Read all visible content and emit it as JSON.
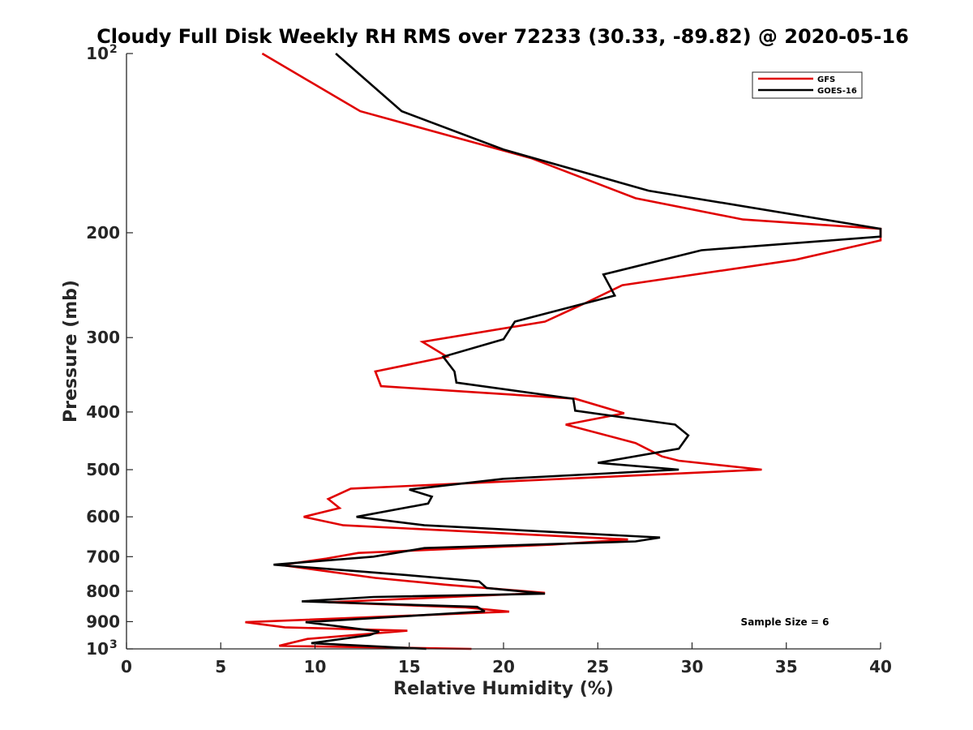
{
  "chart_data": {
    "type": "line",
    "title": "Cloudy Full Disk Weekly RH RMS over 72233 (30.33, -89.82) @ 2020-05-16",
    "xlabel": "Relative Humidity (%)",
    "ylabel": "Pressure (mb)",
    "xlim": [
      0,
      40
    ],
    "ylim": [
      100,
      1000
    ],
    "yscale": "log",
    "y_reversed": true,
    "x_ticks": [
      "0",
      "5",
      "10",
      "15",
      "20",
      "25",
      "30",
      "35",
      "40"
    ],
    "y_ticks": [
      {
        "value": 100,
        "base": "10",
        "exp": "2"
      },
      {
        "value": 200,
        "label": "200"
      },
      {
        "value": 300,
        "label": "300"
      },
      {
        "value": 400,
        "label": "400"
      },
      {
        "value": 500,
        "label": "500"
      },
      {
        "value": 600,
        "label": "600"
      },
      {
        "value": 700,
        "label": "700"
      },
      {
        "value": 800,
        "label": "800"
      },
      {
        "value": 900,
        "label": "900"
      },
      {
        "value": 1000,
        "base": "10",
        "exp": "3"
      }
    ],
    "legend_position": "top-right",
    "annotation": "Sample Size = 6",
    "series": [
      {
        "name": "GFS",
        "color": "#e00000",
        "points": [
          [
            7.2,
            100
          ],
          [
            12.4,
            125
          ],
          [
            21.5,
            150
          ],
          [
            27.0,
            175
          ],
          [
            32.7,
            190
          ],
          [
            40.0,
            197
          ],
          [
            40.0,
            206
          ],
          [
            35.5,
            222
          ],
          [
            26.3,
            245
          ],
          [
            24.4,
            262
          ],
          [
            22.2,
            282
          ],
          [
            15.7,
            305
          ],
          [
            17.0,
            323
          ],
          [
            13.2,
            342
          ],
          [
            13.5,
            362
          ],
          [
            23.8,
            380
          ],
          [
            26.4,
            402
          ],
          [
            23.3,
            420
          ],
          [
            27.0,
            451
          ],
          [
            28.4,
            475
          ],
          [
            29.3,
            483
          ],
          [
            33.7,
            500
          ],
          [
            11.9,
            538
          ],
          [
            10.7,
            560
          ],
          [
            11.3,
            580
          ],
          [
            9.4,
            600
          ],
          [
            11.5,
            620
          ],
          [
            26.6,
            655
          ],
          [
            22.6,
            668
          ],
          [
            12.3,
            690
          ],
          [
            10.6,
            705
          ],
          [
            8.2,
            723
          ],
          [
            13.2,
            760
          ],
          [
            16.9,
            780
          ],
          [
            22.2,
            805
          ],
          [
            10.7,
            835
          ],
          [
            18.0,
            852
          ],
          [
            20.3,
            866
          ],
          [
            6.3,
            902
          ],
          [
            8.4,
            920
          ],
          [
            14.9,
            932
          ],
          [
            9.6,
            962
          ],
          [
            8.1,
            988
          ],
          [
            18.3,
            1000
          ]
        ]
      },
      {
        "name": "GOES-16",
        "color": "#000000",
        "points": [
          [
            11.1,
            100
          ],
          [
            14.6,
            125
          ],
          [
            20.0,
            145
          ],
          [
            27.7,
            170
          ],
          [
            40.0,
            197
          ],
          [
            40.0,
            203
          ],
          [
            30.5,
            214
          ],
          [
            25.3,
            235
          ],
          [
            25.9,
            255
          ],
          [
            20.6,
            282
          ],
          [
            20.0,
            302
          ],
          [
            16.8,
            323
          ],
          [
            17.4,
            342
          ],
          [
            17.5,
            357
          ],
          [
            23.7,
            380
          ],
          [
            23.8,
            398
          ],
          [
            29.1,
            420
          ],
          [
            29.8,
            438
          ],
          [
            29.3,
            461
          ],
          [
            25.0,
            487
          ],
          [
            29.3,
            500
          ],
          [
            20.0,
            518
          ],
          [
            15.0,
            540
          ],
          [
            16.2,
            555
          ],
          [
            16.0,
            570
          ],
          [
            12.2,
            600
          ],
          [
            15.8,
            620
          ],
          [
            28.3,
            650
          ],
          [
            27.0,
            660
          ],
          [
            15.8,
            677
          ],
          [
            13.1,
            700
          ],
          [
            7.8,
            722
          ],
          [
            14.9,
            752
          ],
          [
            18.7,
            770
          ],
          [
            19.1,
            790
          ],
          [
            22.2,
            808
          ],
          [
            13.1,
            818
          ],
          [
            9.3,
            832
          ],
          [
            18.6,
            850
          ],
          [
            19.0,
            865
          ],
          [
            9.5,
            902
          ],
          [
            13.4,
            935
          ],
          [
            12.9,
            948
          ],
          [
            9.8,
            978
          ],
          [
            15.9,
            1000
          ]
        ]
      }
    ]
  }
}
